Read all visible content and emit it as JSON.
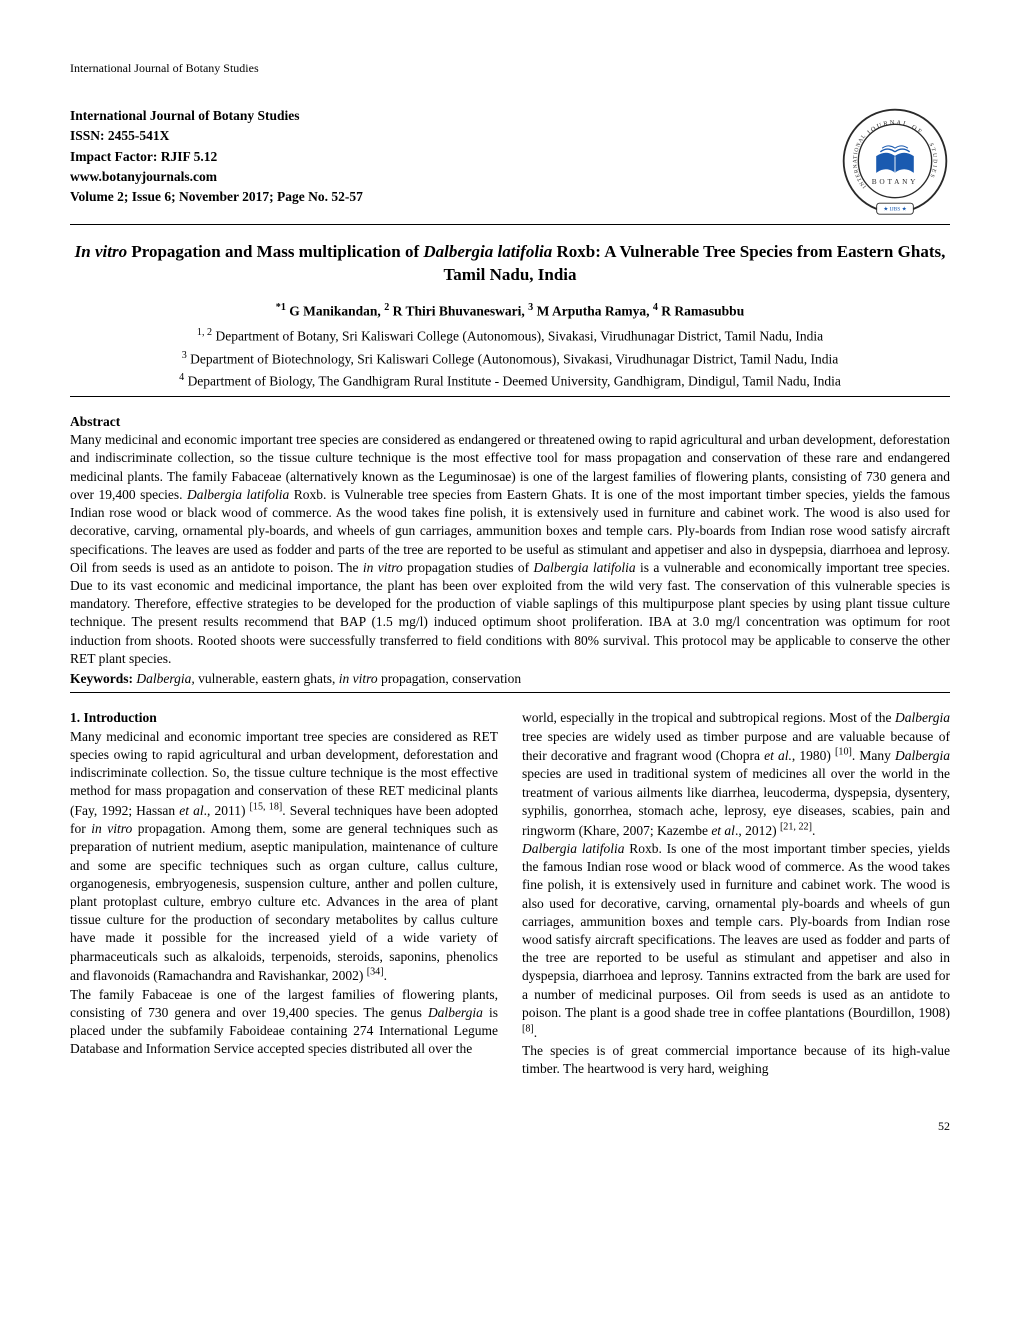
{
  "running_header": "International Journal of Botany Studies",
  "meta": {
    "journal": "International Journal of Botany Studies",
    "issn": "ISSN: 2455-541X",
    "impact": "Impact Factor: RJIF 5.12",
    "url": "www.botanyjournals.com",
    "volume": "Volume 2; Issue 6; November 2017; Page No. 52-57"
  },
  "logo": {
    "outer_text_top": "JOURNAL OF",
    "outer_text_left": "INTERNATIONAL",
    "outer_text_right": "STUDIES",
    "outer_text_bottom_label": "★ IJBS ★",
    "center_word": "BOTANY",
    "ring_color": "#2a2a2a",
    "accent_color": "#1a5ab0",
    "star_color": "#1a5ab0"
  },
  "title_html": "<i>In vitro</i> Propagation and Mass multiplication of <i>Dalbergia latifolia</i> Roxb: A Vulnerable Tree Species from Eastern Ghats, Tamil Nadu, India",
  "authors_html": "<sup>*1</sup> G Manikandan, <sup>2</sup> R Thiri Bhuvaneswari, <sup>3</sup> M Arputha Ramya, <sup>4</sup> R Ramasubbu",
  "affiliations": [
    "<sup>1, 2</sup> Department of Botany, Sri Kaliswari College (Autonomous), Sivakasi, Virudhunagar District, Tamil Nadu, India",
    "<sup>3</sup> Department of Biotechnology, Sri Kaliswari College (Autonomous), Sivakasi, Virudhunagar District, Tamil Nadu, India",
    "<sup>4</sup> Department of Biology, The Gandhigram Rural Institute - Deemed University, Gandhigram, Dindigul, Tamil Nadu, India"
  ],
  "abstract_heading": "Abstract",
  "abstract_html": "Many medicinal and economic important tree species are considered as endangered or threatened owing to rapid agricultural and urban development, deforestation and indiscriminate collection, so the tissue culture technique is the most effective tool for mass propagation and conservation of these rare and endangered medicinal plants. The family Fabaceae (alternatively known as the Leguminosae) is one of the largest families of flowering plants, consisting of 730 genera and over 19,400 species. <i>Dalbergia latifolia</i> Roxb. is Vulnerable tree species from Eastern Ghats. It is one of the most important timber species, yields the famous Indian rose wood or black wood of commerce. As the wood takes fine polish, it is extensively used in furniture and cabinet work. The wood is also used for decorative, carving, ornamental ply-boards, and wheels of gun carriages, ammunition boxes and temple cars. Ply-boards from Indian rose wood satisfy aircraft specifications. The leaves are used as fodder and parts of the tree are reported to be useful as stimulant and appetiser and also in dyspepsia, diarrhoea and leprosy. Oil from seeds is used as an antidote to poison. The <i>in vitro</i> propagation studies of <i>Dalbergia latifolia</i> is a vulnerable and economically important tree species. Due to its vast economic and medicinal importance, the plant has been over exploited from the wild very fast. The conservation of this vulnerable species is mandatory. Therefore, effective strategies to be developed for the production of viable saplings of this multipurpose plant species by using plant tissue culture technique. The present results recommend that BAP (1.5 mg/l) induced optimum shoot proliferation. IBA at 3.0 mg/l concentration was optimum for root induction from shoots. Rooted shoots were successfully transferred to field conditions with 80% survival. This protocol may be applicable to conserve the other RET plant species.",
  "keywords_label": "Keywords:",
  "keywords_html": " <i>Dalbergia,</i> vulnerable, eastern ghats, <i>in vitro</i> propagation, conservation",
  "intro_heading": "1. Introduction",
  "col_left_html": "Many medicinal and economic important tree species are considered as RET species owing to rapid agricultural and urban development, deforestation and indiscriminate collection. So, the tissue culture technique is the most effective method for mass propagation and conservation of these RET medicinal plants (Fay, 1992; Hassan <i>et al</i>., 2011) <sup>[15, 18]</sup>. Several techniques have been adopted for <i>in vitro</i> propagation. Among them, some are general techniques such as preparation of nutrient medium, aseptic manipulation, maintenance of culture and some are specific techniques such as organ culture, callus culture, organogenesis, embryogenesis, suspension culture, anther and pollen culture, plant protoplast culture, embryo culture etc. Advances in the area of plant tissue culture for the production of secondary metabolites by callus culture have made it possible for the increased yield of a wide variety of pharmaceuticals such as alkaloids, terpenoids, steroids, saponins, phenolics and flavonoids (Ramachandra and Ravishankar, 2002) <sup>[34]</sup>.<br>The family Fabaceae is one of the largest families of flowering plants, consisting of 730 genera and over 19,400 species. The genus <i>Dalbergia</i> is placed under the subfamily Faboideae containing 274 International Legume Database and Information Service accepted species distributed all over the",
  "col_right_html": "world, especially in the tropical and subtropical regions. Most of the <i>Dalbergia</i> tree species are widely used as timber purpose and are valuable because of their decorative and fragrant wood (Chopra <i>et al.</i>, 1980) <sup>[10]</sup>. Many <i>Dalbergia</i> species are used in traditional system of medicines all over the world in the treatment of various ailments like diarrhea, leucoderma, dyspepsia, dysentery, syphilis, gonorrhea, stomach ache, leprosy, eye diseases, scabies, pain and ringworm (Khare, 2007; Kazembe <i>et al</i>., 2012) <sup>[21, 22]</sup>.<br><i>Dalbergia latifolia</i> Roxb. Is one of the most important timber species, yields the famous Indian rose wood or black wood of commerce. As the wood takes fine polish, it is extensively used in furniture and cabinet work. The wood is also used for decorative, carving, ornamental ply-boards and wheels of gun carriages, ammunition boxes and temple cars. Ply-boards from Indian rose wood satisfy aircraft specifications. The leaves are used as fodder and parts of the tree are reported to be useful as stimulant and appetiser and also in dyspepsia, diarrhoea and leprosy. Tannins extracted from the bark are used for a number of medicinal purposes. Oil from seeds is used as an antidote to poison. The plant is a good shade tree in coffee plantations (Bourdillon, 1908) <sup>[8]</sup>.<br>The species is of great commercial importance because of its high-value timber. The heartwood is very hard, weighing",
  "page_number": "52"
}
